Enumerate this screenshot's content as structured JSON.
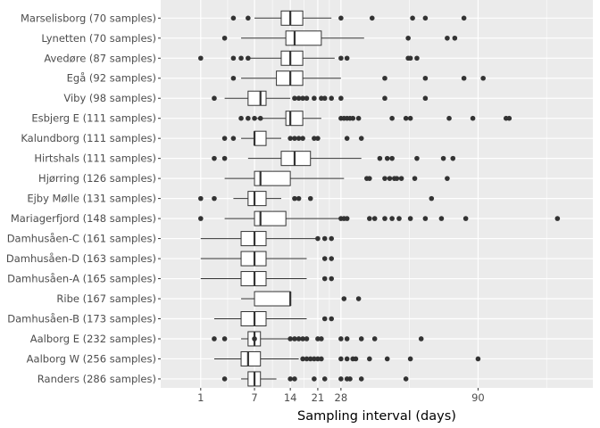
{
  "chart_data": {
    "type": "boxplot",
    "title": "",
    "xlabel": "Sampling interval (days)",
    "ylabel": "",
    "x_scale": "sqrt",
    "xlim": [
      0,
      150
    ],
    "x_ticks": [
      1,
      7,
      14,
      21,
      28,
      90
    ],
    "grid": true,
    "legend": "none",
    "colors": {
      "panel": "#ebebeb",
      "grid": "#ffffff",
      "box_fill": "#ffffff",
      "box_stroke": "#333333",
      "point": "#333333"
    },
    "categories": [
      {
        "label": "Marselisborg (70 samples)",
        "whisker_low": 7,
        "q1": 12,
        "median": 14,
        "q3": 17,
        "whisker_high": 25,
        "outliers": [
          4,
          6,
          28,
          39,
          56,
          62,
          82
        ]
      },
      {
        "label": "Lynetten (70 samples)",
        "whisker_low": 5,
        "q1": 13,
        "median": 15,
        "q3": 22,
        "whisker_high": 36,
        "outliers": [
          3,
          54,
          73,
          77
        ]
      },
      {
        "label": "Avedøre (87 samples)",
        "whisker_low": 6,
        "q1": 12,
        "median": 14,
        "q3": 17,
        "whisker_high": 26,
        "outliers": [
          1,
          4,
          5,
          6,
          28,
          30,
          54,
          55,
          58
        ]
      },
      {
        "label": "Egå (92 samples)",
        "whisker_low": 5,
        "q1": 11,
        "median": 14,
        "q3": 17,
        "whisker_high": 28,
        "outliers": [
          4,
          44,
          62,
          82,
          93
        ]
      },
      {
        "label": "Viby (98 samples)",
        "whisker_low": 3,
        "q1": 6,
        "median": 8,
        "q3": 9,
        "whisker_high": 14,
        "outliers": [
          2,
          15,
          16,
          17,
          18,
          20,
          22,
          23,
          25,
          28,
          44,
          62
        ]
      },
      {
        "label": "Esbjerg E (111 samples)",
        "whisker_low": 7,
        "q1": 13,
        "median": 14,
        "q3": 17,
        "whisker_high": 22,
        "outliers": [
          5,
          6,
          7,
          8,
          28,
          29,
          30,
          31,
          32,
          34,
          47,
          53,
          55,
          74,
          87,
          107,
          109
        ]
      },
      {
        "label": "Kalundborg (111 samples)",
        "whisker_low": 5,
        "q1": 7,
        "median": 7,
        "q3": 9,
        "whisker_high": 12,
        "outliers": [
          3,
          4,
          14,
          15,
          16,
          17,
          20,
          21,
          30,
          35
        ]
      },
      {
        "label": "Hirtshals (111 samples)",
        "whisker_low": 6,
        "q1": 12,
        "median": 15,
        "q3": 19,
        "whisker_high": 35,
        "outliers": [
          2,
          3,
          42,
          45,
          47,
          58,
          71,
          76
        ]
      },
      {
        "label": "Hjørring (126 samples)",
        "whisker_low": 3,
        "q1": 7,
        "median": 8,
        "q3": 14,
        "whisker_high": 29,
        "outliers": [
          37,
          38,
          44,
          46,
          48,
          49,
          51,
          57,
          73
        ]
      },
      {
        "label": "Ejby Mølle (131 samples)",
        "whisker_low": 4,
        "q1": 6,
        "median": 7,
        "q3": 9,
        "whisker_high": 12,
        "outliers": [
          1,
          2,
          15,
          16,
          19,
          65
        ]
      },
      {
        "label": "Mariagerfjord (148 samples)",
        "whisker_low": 3,
        "q1": 7,
        "median": 8,
        "q3": 13,
        "whisker_high": 28,
        "outliers": [
          1,
          28,
          29,
          30,
          38,
          40,
          44,
          47,
          50,
          55,
          62,
          70,
          83,
          142
        ]
      },
      {
        "label": "Damhusåen-C (161 samples)",
        "whisker_low": 1,
        "q1": 5,
        "median": 7,
        "q3": 9,
        "whisker_high": 21,
        "outliers": [
          21,
          23,
          25
        ]
      },
      {
        "label": "Damhusåen-D (163 samples)",
        "whisker_low": 1,
        "q1": 5,
        "median": 7,
        "q3": 9,
        "whisker_high": 18,
        "outliers": [
          23,
          25
        ]
      },
      {
        "label": "Damhusåen-A (165 samples)",
        "whisker_low": 1,
        "q1": 5,
        "median": 7,
        "q3": 9,
        "whisker_high": 18,
        "outliers": [
          23,
          25
        ]
      },
      {
        "label": "Ribe (167 samples)",
        "whisker_low": 5,
        "q1": 7,
        "median": 14,
        "q3": 14,
        "whisker_high": 14,
        "outliers": [
          29,
          34
        ]
      },
      {
        "label": "Damhusåen-B (173 samples)",
        "whisker_low": 2,
        "q1": 5,
        "median": 7,
        "q3": 9,
        "whisker_high": 18,
        "outliers": [
          23,
          25
        ]
      },
      {
        "label": "Aalborg E (232 samples)",
        "whisker_low": 5,
        "q1": 6,
        "median": 7,
        "q3": 8,
        "whisker_high": 14,
        "outliers": [
          2,
          3,
          7,
          14,
          15,
          16,
          17,
          18,
          21,
          22,
          28,
          30,
          35,
          40,
          60
        ]
      },
      {
        "label": "Aalborg W (256 samples)",
        "whisker_low": 2,
        "q1": 5,
        "median": 6,
        "q3": 8,
        "whisker_high": 16,
        "outliers": [
          17,
          18,
          19,
          20,
          21,
          22,
          28,
          30,
          32,
          33,
          38,
          45,
          55,
          90
        ]
      },
      {
        "label": "Randers (286 samples)",
        "whisker_low": 5,
        "q1": 6,
        "median": 7,
        "q3": 8,
        "whisker_high": 11,
        "outliers": [
          3,
          14,
          15,
          20,
          23,
          28,
          30,
          31,
          35,
          53
        ]
      }
    ]
  }
}
